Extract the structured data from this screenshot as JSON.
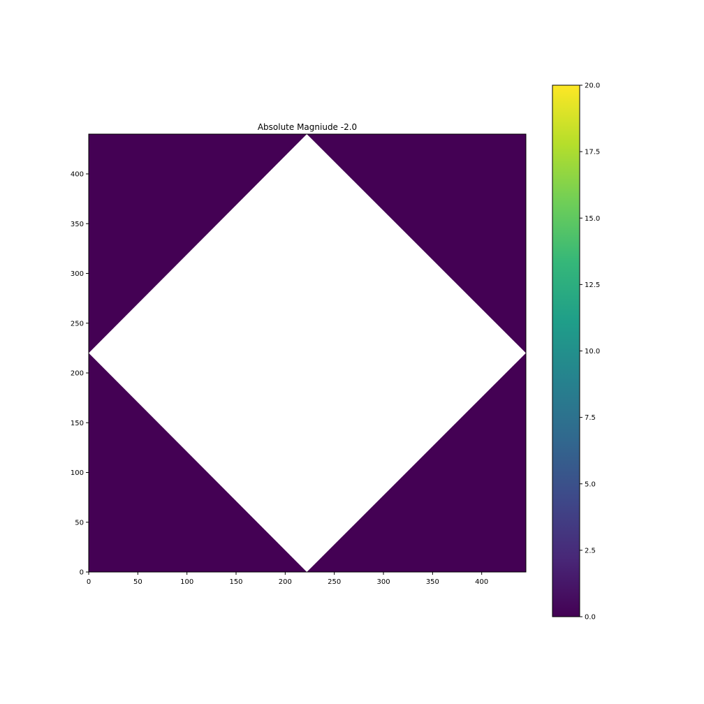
{
  "chart_data": {
    "type": "heatmap",
    "title": "Absolute Magniude -2.0",
    "xlabel": "",
    "ylabel": "",
    "xlim": [
      0,
      445
    ],
    "ylim": [
      0,
      440
    ],
    "x_ticks": [
      0,
      50,
      100,
      150,
      200,
      250,
      300,
      350,
      400
    ],
    "x_tick_labels": [
      "0",
      "50",
      "100",
      "150",
      "200",
      "250",
      "300",
      "350",
      "400"
    ],
    "y_ticks": [
      0,
      50,
      100,
      150,
      200,
      250,
      300,
      350,
      400
    ],
    "y_tick_labels": [
      "0",
      "50",
      "100",
      "150",
      "200",
      "250",
      "300",
      "350",
      "400"
    ],
    "background_value": 0.0,
    "background_color": "#440154",
    "masked_region": {
      "shape": "diamond",
      "fill": "#ffffff",
      "vertices": [
        [
          222,
          440
        ],
        [
          445,
          220
        ],
        [
          222,
          0
        ],
        [
          0,
          220
        ]
      ]
    },
    "colormap": "viridis",
    "colorbar": {
      "vmin": 0.0,
      "vmax": 20.0,
      "ticks": [
        0,
        2.5,
        5,
        7.5,
        10,
        12.5,
        15,
        17.5,
        20
      ],
      "tick_labels": [
        "0.0",
        "2.5",
        "5.0",
        "7.5",
        "10.0",
        "12.5",
        "15.0",
        "17.5",
        "20.0"
      ],
      "colors": [
        "#440154",
        "#482878",
        "#3e4989",
        "#31688e",
        "#26828e",
        "#1f9e89",
        "#35b779",
        "#6ece58",
        "#b5de2b",
        "#fde725"
      ]
    },
    "grid": false
  }
}
